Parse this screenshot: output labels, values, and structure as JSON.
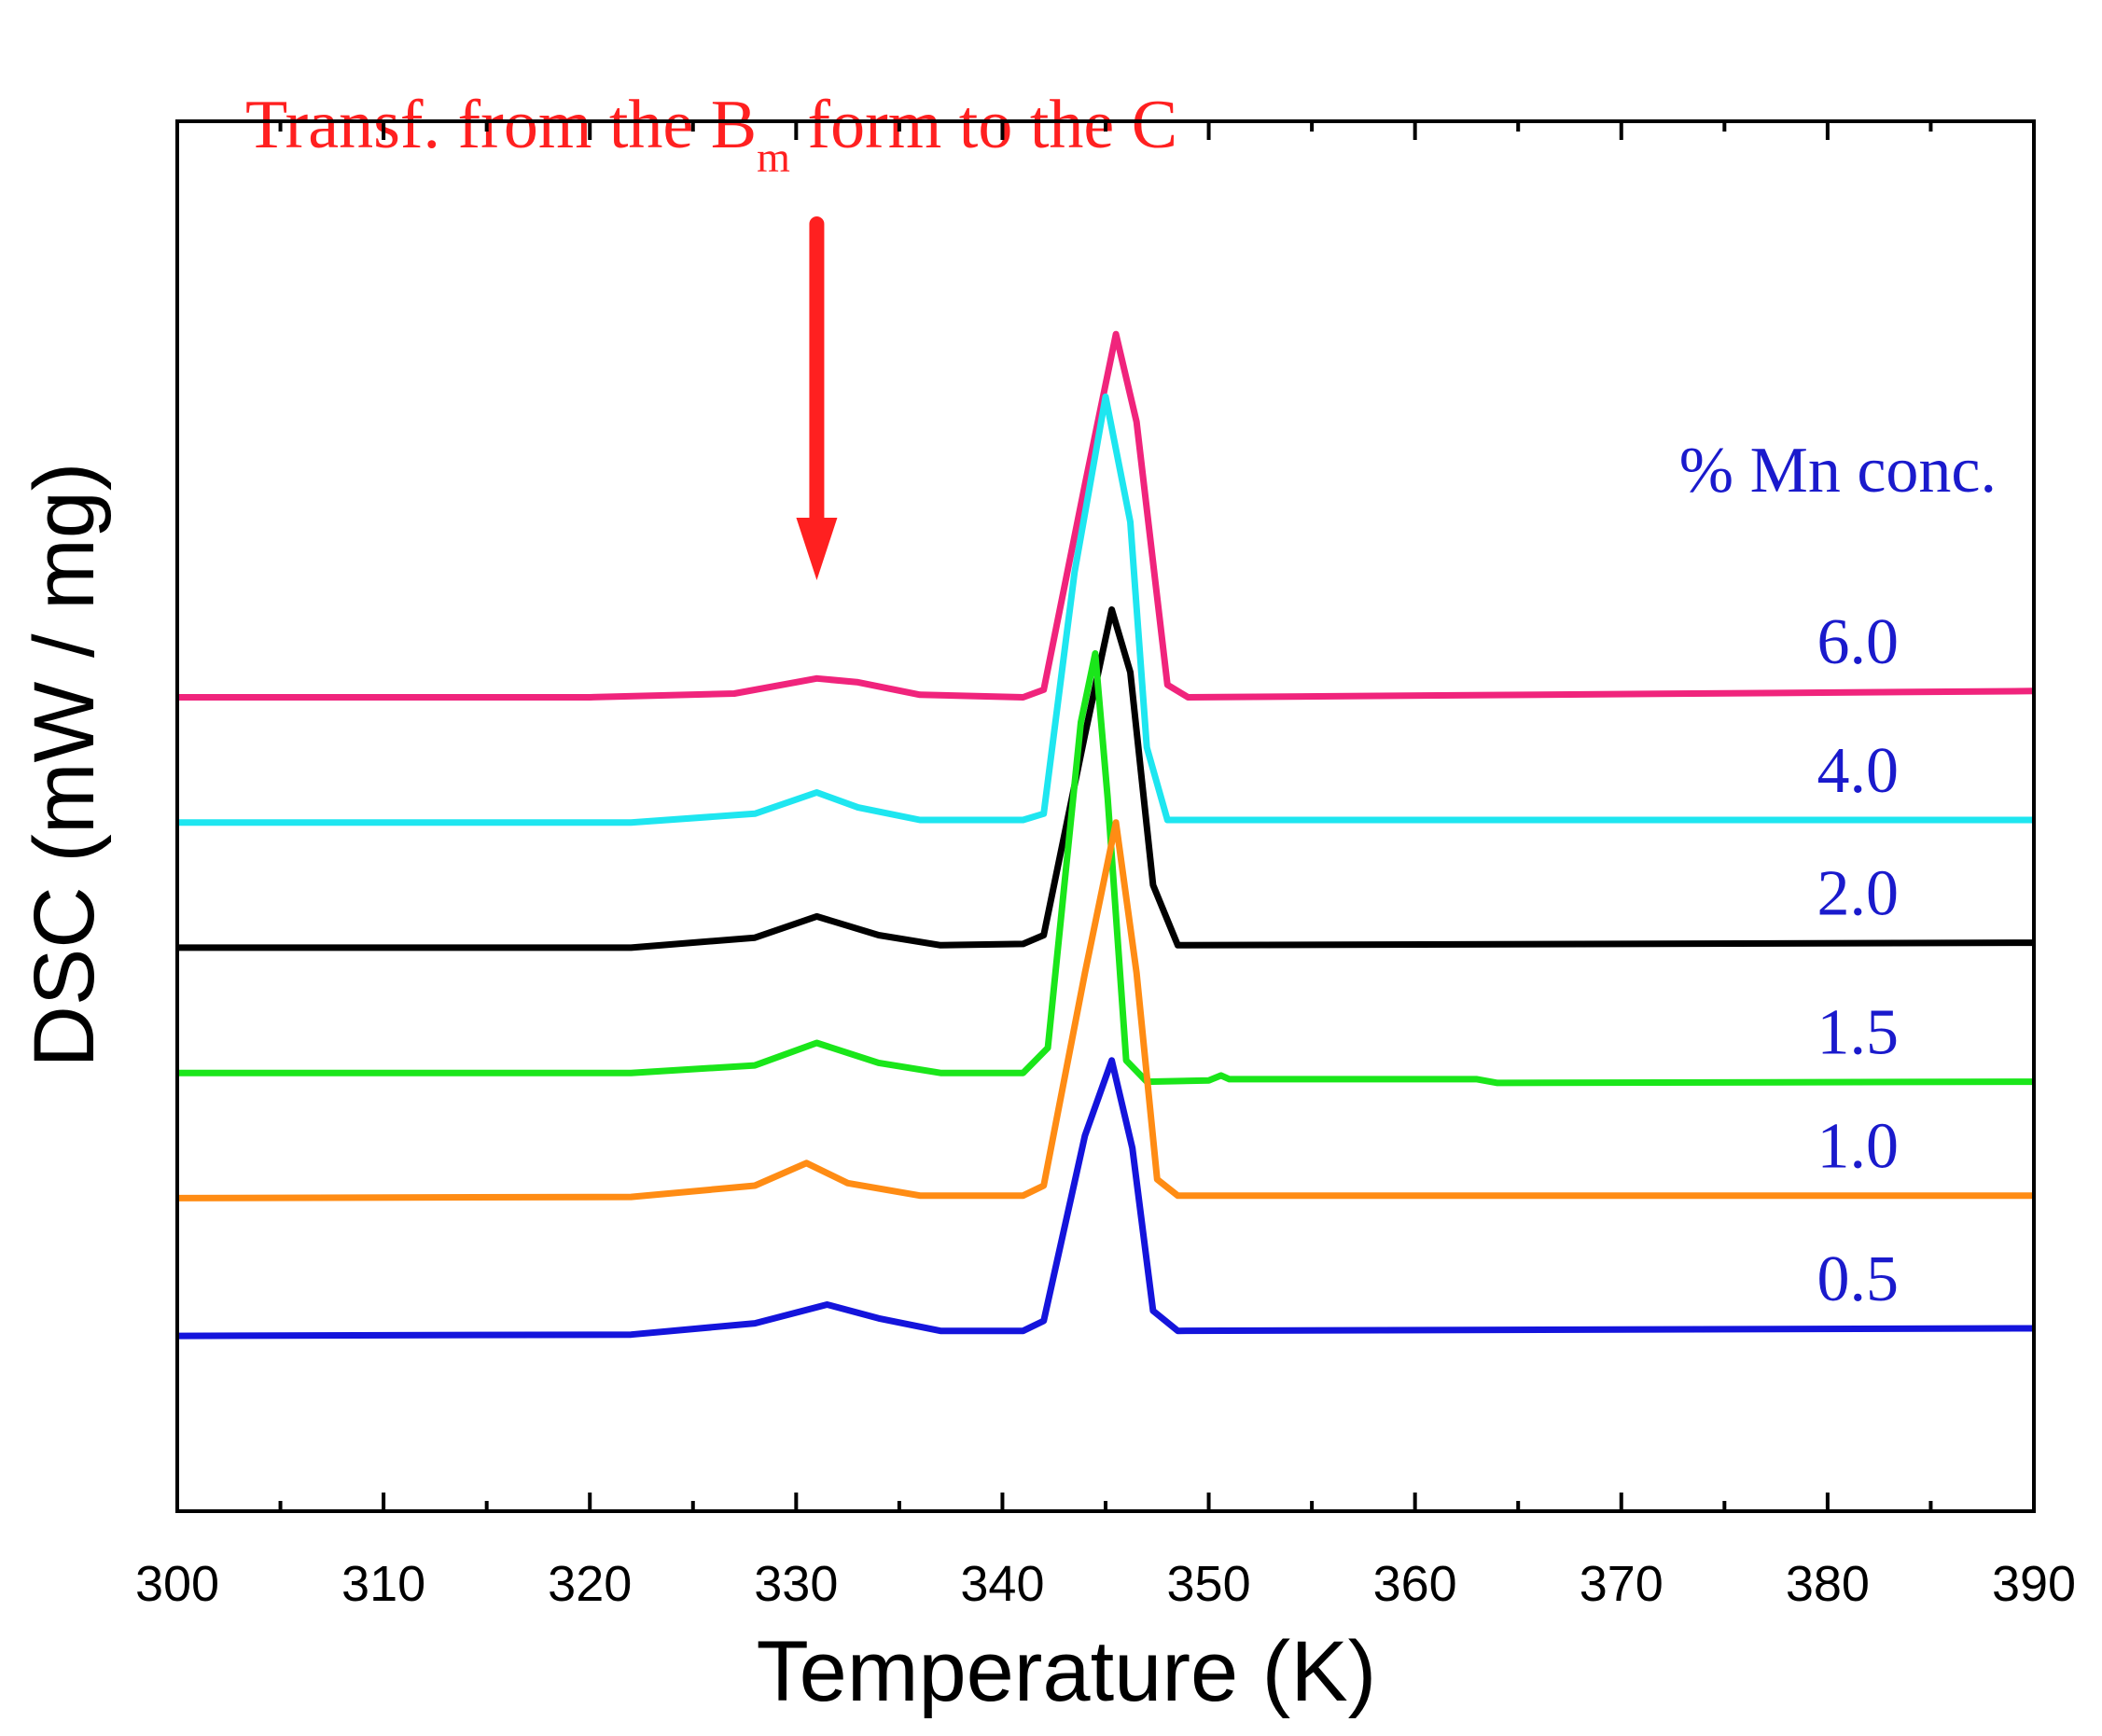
{
  "colors": {
    "axis": "#000000",
    "annotation": "#ff2020",
    "legend_text": "#1a1acc"
  },
  "chart_data": {
    "type": "line",
    "title": "",
    "xlabel": "Temperature (K)",
    "ylabel": "DSC (mW / mg)",
    "xlim": [
      300,
      390
    ],
    "ylim": [
      -6.5,
      4.6
    ],
    "x_ticks": [
      "300",
      "310",
      "320",
      "330",
      "340",
      "350",
      "360",
      "370",
      "380",
      "390"
    ],
    "y_tick_labels_shown": false,
    "legend_title": "% Mn conc.",
    "annotation": {
      "text_before": "Transf. from the B",
      "subscript": "m",
      "text_after": " form to the C",
      "arrow_x": 331
    },
    "series": [
      {
        "name": "6.0",
        "color": "#f0247c",
        "points": [
          [
            300,
            0.0
          ],
          [
            320,
            0.0
          ],
          [
            327,
            0.03
          ],
          [
            331,
            0.15
          ],
          [
            333,
            0.12
          ],
          [
            336,
            0.02
          ],
          [
            341,
            0.0
          ],
          [
            342,
            0.06
          ],
          [
            344,
            1.7
          ],
          [
            345.5,
            2.9
          ],
          [
            346.5,
            2.2
          ],
          [
            348,
            0.1
          ],
          [
            349,
            0.0
          ],
          [
            390,
            0.05
          ]
        ]
      },
      {
        "name": "4.0",
        "color": "#1ee6f0",
        "points": [
          [
            300,
            -1.0
          ],
          [
            322,
            -1.0
          ],
          [
            328,
            -0.93
          ],
          [
            331,
            -0.76
          ],
          [
            333,
            -0.88
          ],
          [
            336,
            -0.98
          ],
          [
            341,
            -0.98
          ],
          [
            342,
            -0.93
          ],
          [
            343.5,
            1.0
          ],
          [
            345,
            2.4
          ],
          [
            346.2,
            1.4
          ],
          [
            347,
            -0.4
          ],
          [
            348,
            -0.98
          ],
          [
            390,
            -0.98
          ]
        ]
      },
      {
        "name": "2.0",
        "color": "#000000",
        "points": [
          [
            300,
            -2.0
          ],
          [
            322,
            -2.0
          ],
          [
            328,
            -1.92
          ],
          [
            331,
            -1.75
          ],
          [
            334,
            -1.9
          ],
          [
            337,
            -1.98
          ],
          [
            341,
            -1.97
          ],
          [
            342,
            -1.9
          ],
          [
            344,
            -0.3
          ],
          [
            345.3,
            0.7
          ],
          [
            346.2,
            0.2
          ],
          [
            347.3,
            -1.5
          ],
          [
            348.5,
            -1.98
          ],
          [
            390,
            -1.96
          ]
        ]
      },
      {
        "name": "1.5",
        "color": "#1ae61a",
        "points": [
          [
            300,
            -3.0
          ],
          [
            322,
            -3.0
          ],
          [
            328,
            -2.94
          ],
          [
            331,
            -2.76
          ],
          [
            334,
            -2.92
          ],
          [
            337,
            -3.0
          ],
          [
            341,
            -3.0
          ],
          [
            342.2,
            -2.8
          ],
          [
            343.8,
            -0.2
          ],
          [
            344.5,
            0.35
          ],
          [
            345.1,
            -0.8
          ],
          [
            346,
            -2.9
          ],
          [
            347,
            -3.07
          ],
          [
            350,
            -3.06
          ],
          [
            350.6,
            -3.02
          ],
          [
            351,
            -3.05
          ],
          [
            363,
            -3.05
          ],
          [
            364,
            -3.08
          ],
          [
            390,
            -3.07
          ]
        ]
      },
      {
        "name": "1.0",
        "color": "#ff8c14",
        "points": [
          [
            300,
            -4.0
          ],
          [
            322,
            -3.99
          ],
          [
            328,
            -3.9
          ],
          [
            330.5,
            -3.72
          ],
          [
            332.5,
            -3.88
          ],
          [
            336,
            -3.98
          ],
          [
            341,
            -3.98
          ],
          [
            342,
            -3.9
          ],
          [
            344,
            -2.2
          ],
          [
            345.5,
            -1.0
          ],
          [
            346.5,
            -2.2
          ],
          [
            347.5,
            -3.85
          ],
          [
            348.5,
            -3.98
          ],
          [
            390,
            -3.98
          ]
        ]
      },
      {
        "name": "0.5",
        "color": "#1414dc",
        "points": [
          [
            300,
            -5.1
          ],
          [
            322,
            -5.09
          ],
          [
            328,
            -5.0
          ],
          [
            331.5,
            -4.85
          ],
          [
            334,
            -4.96
          ],
          [
            337,
            -5.06
          ],
          [
            341,
            -5.06
          ],
          [
            342,
            -4.98
          ],
          [
            344,
            -3.5
          ],
          [
            345.3,
            -2.9
          ],
          [
            346.3,
            -3.6
          ],
          [
            347.3,
            -4.9
          ],
          [
            348.5,
            -5.06
          ],
          [
            390,
            -5.04
          ]
        ]
      }
    ]
  }
}
